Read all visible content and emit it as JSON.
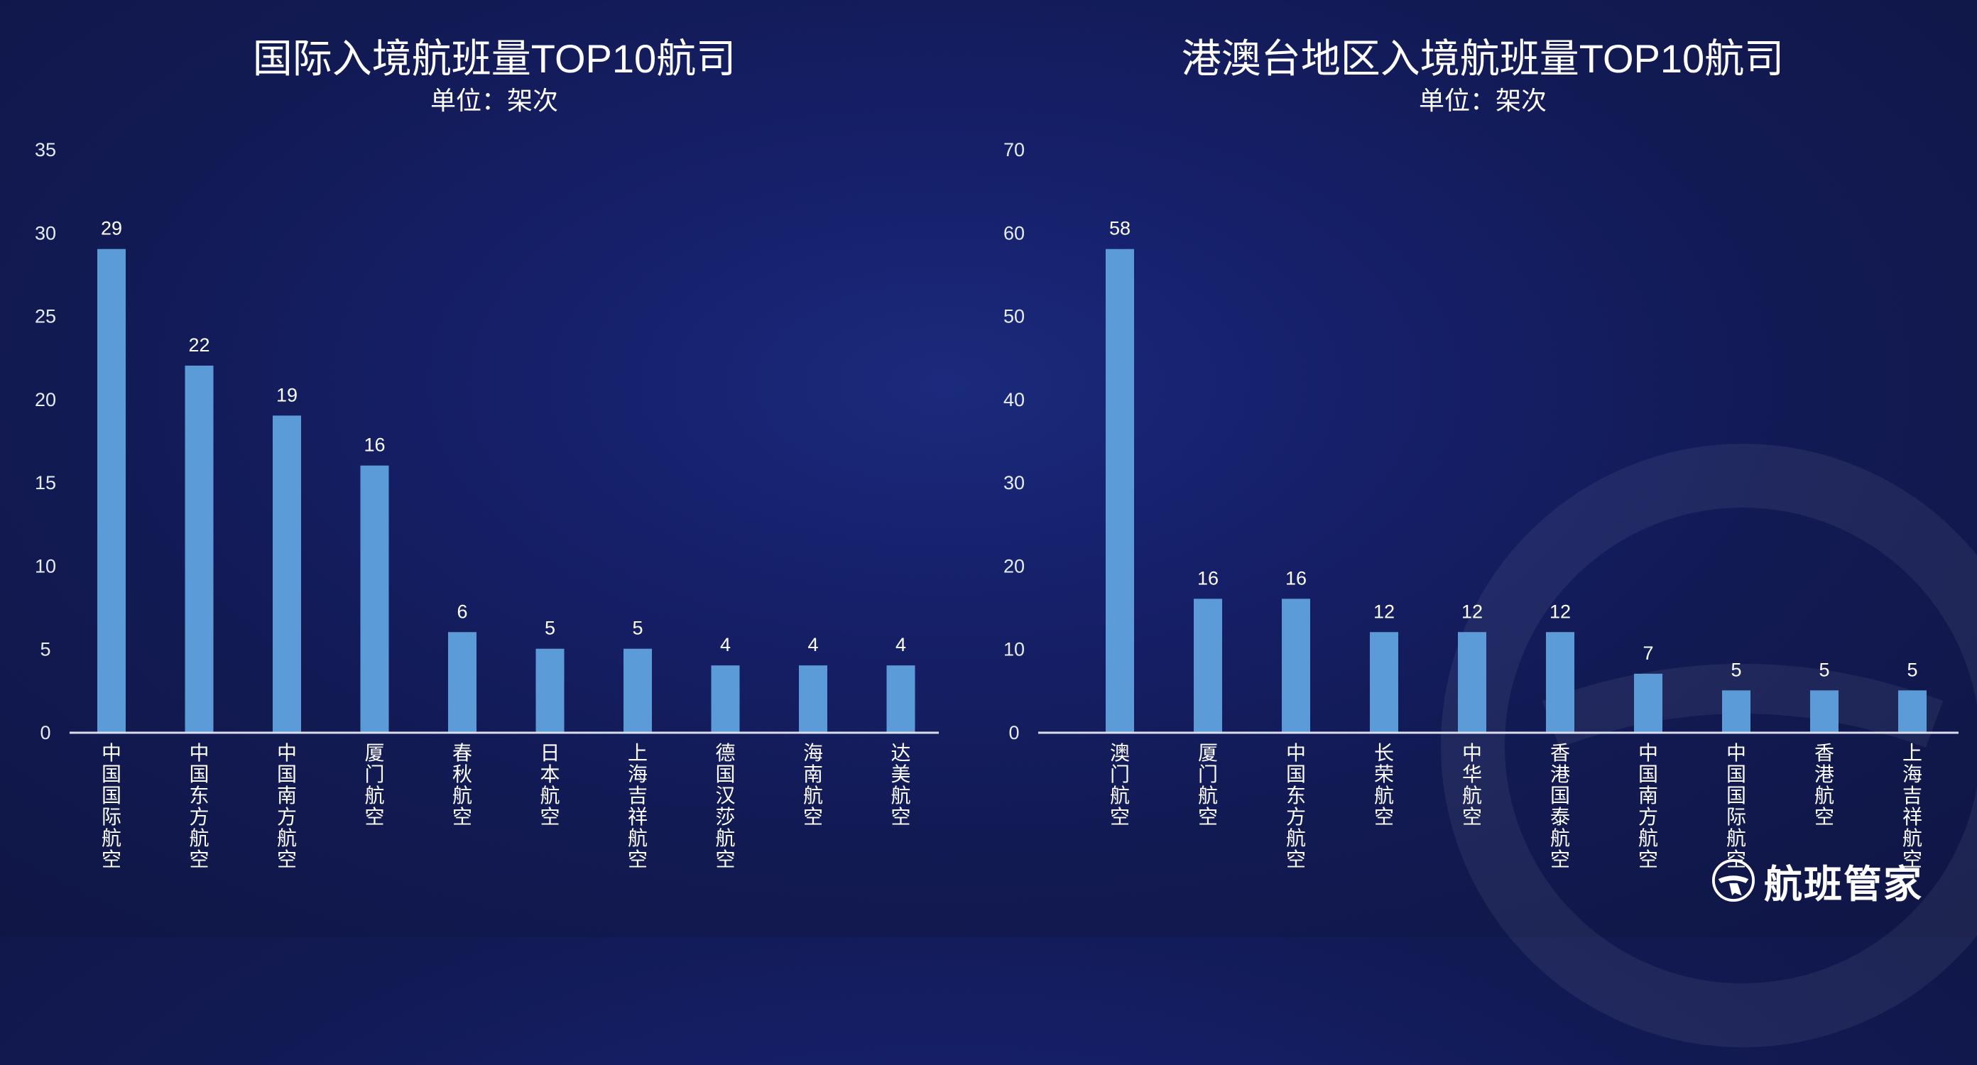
{
  "brand": {
    "name": "航班管家",
    "icon": "plane-logo-icon"
  },
  "colors": {
    "bar": "#5b9bd8",
    "background": "#131b55",
    "axis": "#d9dcea"
  },
  "chart_data": [
    {
      "type": "bar",
      "title": "国际入境航班量TOP10航司",
      "subtitle": "单位：架次",
      "categories": [
        "中国国际航空",
        "中国东方航空",
        "中国南方航空",
        "厦门航空",
        "春秋航空",
        "日本航空",
        "上海吉祥航空",
        "德国汉莎航空",
        "海南航空",
        "达美航空"
      ],
      "values": [
        29,
        22,
        19,
        16,
        6,
        5,
        5,
        4,
        4,
        4
      ],
      "ylim": [
        0,
        35
      ],
      "yticks": [
        0,
        5,
        10,
        15,
        20,
        25,
        30,
        35
      ],
      "grid": false,
      "data_labels": true
    },
    {
      "type": "bar",
      "title": "港澳台地区入境航班量TOP10航司",
      "subtitle": "单位：架次",
      "categories": [
        "澳门航空",
        "厦门航空",
        "中国东方航空",
        "长荣航空",
        "中华航空",
        "香港国泰航空",
        "中国南方航空",
        "中国国际航空",
        "香港航空",
        "上海吉祥航空"
      ],
      "values": [
        58,
        16,
        16,
        12,
        12,
        12,
        7,
        5,
        5,
        5
      ],
      "ylim": [
        0,
        70
      ],
      "yticks": [
        0,
        10,
        20,
        30,
        40,
        50,
        60,
        70
      ],
      "grid": false,
      "data_labels": true
    }
  ]
}
